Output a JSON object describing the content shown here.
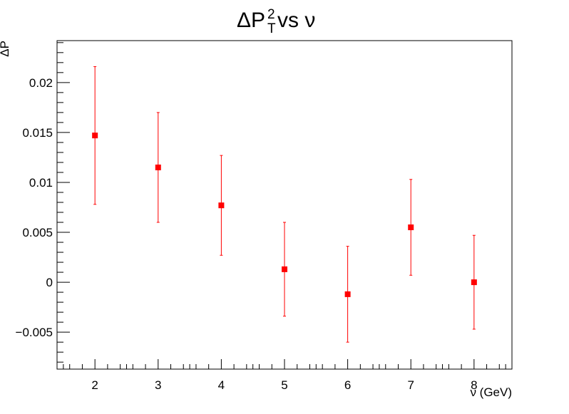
{
  "chart_data": {
    "type": "scatter",
    "title": {
      "prefix": "ΔP",
      "superscript": "2",
      "subscript": "T",
      "suffix": " vs ν"
    },
    "xlabel": "ν (GeV)",
    "ylabel": "ΔP",
    "xlim": [
      1.4,
      8.6
    ],
    "ylim": [
      -0.0087,
      0.0242
    ],
    "x_ticks": [
      2,
      3,
      4,
      5,
      6,
      7,
      8
    ],
    "y_ticks": [
      -0.005,
      0,
      0.005,
      0.01,
      0.015,
      0.02
    ],
    "y_tick_labels": [
      "−0.005",
      "0",
      "0.005",
      "0.01",
      "0.015",
      "0.02"
    ],
    "grid": false,
    "series": [
      {
        "color": "#ff0000",
        "marker": "square",
        "points": [
          {
            "x": 2,
            "y": 0.0147,
            "err": 0.0069
          },
          {
            "x": 3,
            "y": 0.0115,
            "err": 0.0055
          },
          {
            "x": 4,
            "y": 0.0077,
            "err": 0.005
          },
          {
            "x": 5,
            "y": 0.0013,
            "err": 0.0047
          },
          {
            "x": 6,
            "y": -0.0012,
            "err": 0.0048
          },
          {
            "x": 7,
            "y": 0.0055,
            "err": 0.0048
          },
          {
            "x": 8,
            "y": 0.0,
            "err": 0.0047
          }
        ]
      }
    ]
  }
}
